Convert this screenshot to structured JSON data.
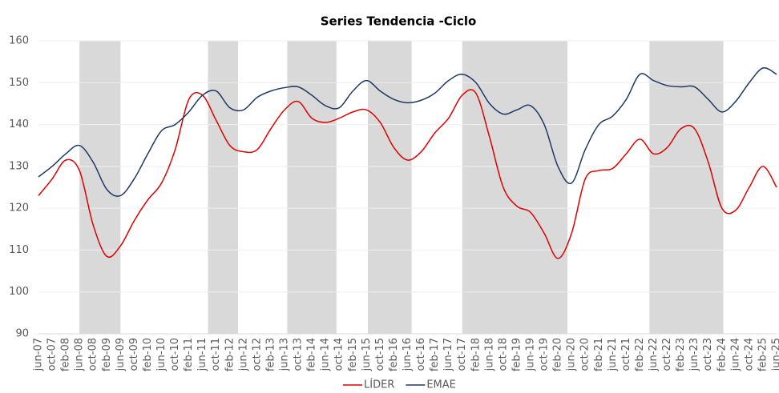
{
  "chart_data": {
    "type": "line",
    "title": "Series Tendencia -Ciclo",
    "categories": [
      "jun-07",
      "oct-07",
      "feb-08",
      "jun-08",
      "oct-08",
      "feb-09",
      "jun-09",
      "oct-09",
      "feb-10",
      "jun-10",
      "oct-10",
      "feb-11",
      "jun-11",
      "oct-11",
      "feb-12",
      "jun-12",
      "oct-12",
      "feb-13",
      "jun-13",
      "oct-13",
      "feb-14",
      "jun-14",
      "oct-14",
      "feb-15",
      "jun-15",
      "oct-15",
      "feb-16",
      "jun-16",
      "oct-16",
      "feb-17",
      "jun-17",
      "oct-17",
      "feb-18",
      "jun-18",
      "oct-18",
      "feb-19",
      "jun-19",
      "oct-19",
      "feb-20",
      "jun-20",
      "oct-20",
      "feb-21",
      "jun-21",
      "oct-21",
      "feb-22",
      "jun-22",
      "oct-22",
      "feb-23",
      "jun-23",
      "oct-23",
      "feb-24",
      "jun-24",
      "oct-24",
      "feb-25",
      "jun-25"
    ],
    "series": [
      {
        "name": "LÍDER",
        "color": "#e00000",
        "values": [
          123,
          127,
          131.5,
          129,
          116,
          108.5,
          111,
          117,
          122,
          126,
          134,
          146,
          147,
          141,
          135,
          133.5,
          134,
          139,
          143.5,
          145.5,
          141.5,
          140.5,
          141.5,
          143,
          143.5,
          140.5,
          134.5,
          131.5,
          133.5,
          138,
          141.5,
          147,
          147.5,
          137,
          125,
          120.5,
          119,
          114,
          108,
          114,
          127,
          129,
          129.5,
          133,
          136.5,
          133,
          134.5,
          139,
          139,
          131,
          120,
          119.5,
          125,
          130,
          125
        ]
      },
      {
        "name": "EMAE",
        "color": "#1f3864",
        "values": [
          127.5,
          130,
          133,
          135,
          131,
          124.5,
          123,
          127,
          133,
          138.5,
          140,
          143,
          147,
          148,
          144,
          143.5,
          146.5,
          148,
          148.8,
          149,
          147,
          144.5,
          144,
          148,
          150.5,
          148,
          146,
          145.2,
          145.8,
          147.5,
          150.5,
          152,
          150,
          145,
          142.5,
          143.5,
          144.5,
          140,
          130,
          126,
          134,
          140,
          142,
          146,
          152,
          150.5,
          149.3,
          149,
          149,
          146,
          143,
          145.5,
          150,
          153.5,
          152
        ]
      }
    ],
    "shaded_periods": [
      [
        3,
        6
      ],
      [
        12.4,
        14.6
      ],
      [
        18.2,
        21.8
      ],
      [
        24.1,
        27.3
      ],
      [
        31,
        38.7
      ],
      [
        44.7,
        50.1
      ]
    ],
    "shade_color": "#d9d9d9",
    "ylim": [
      90,
      160
    ],
    "yticks": [
      90,
      100,
      110,
      120,
      130,
      140,
      150,
      160
    ],
    "grid": true,
    "legend": "bottom"
  }
}
